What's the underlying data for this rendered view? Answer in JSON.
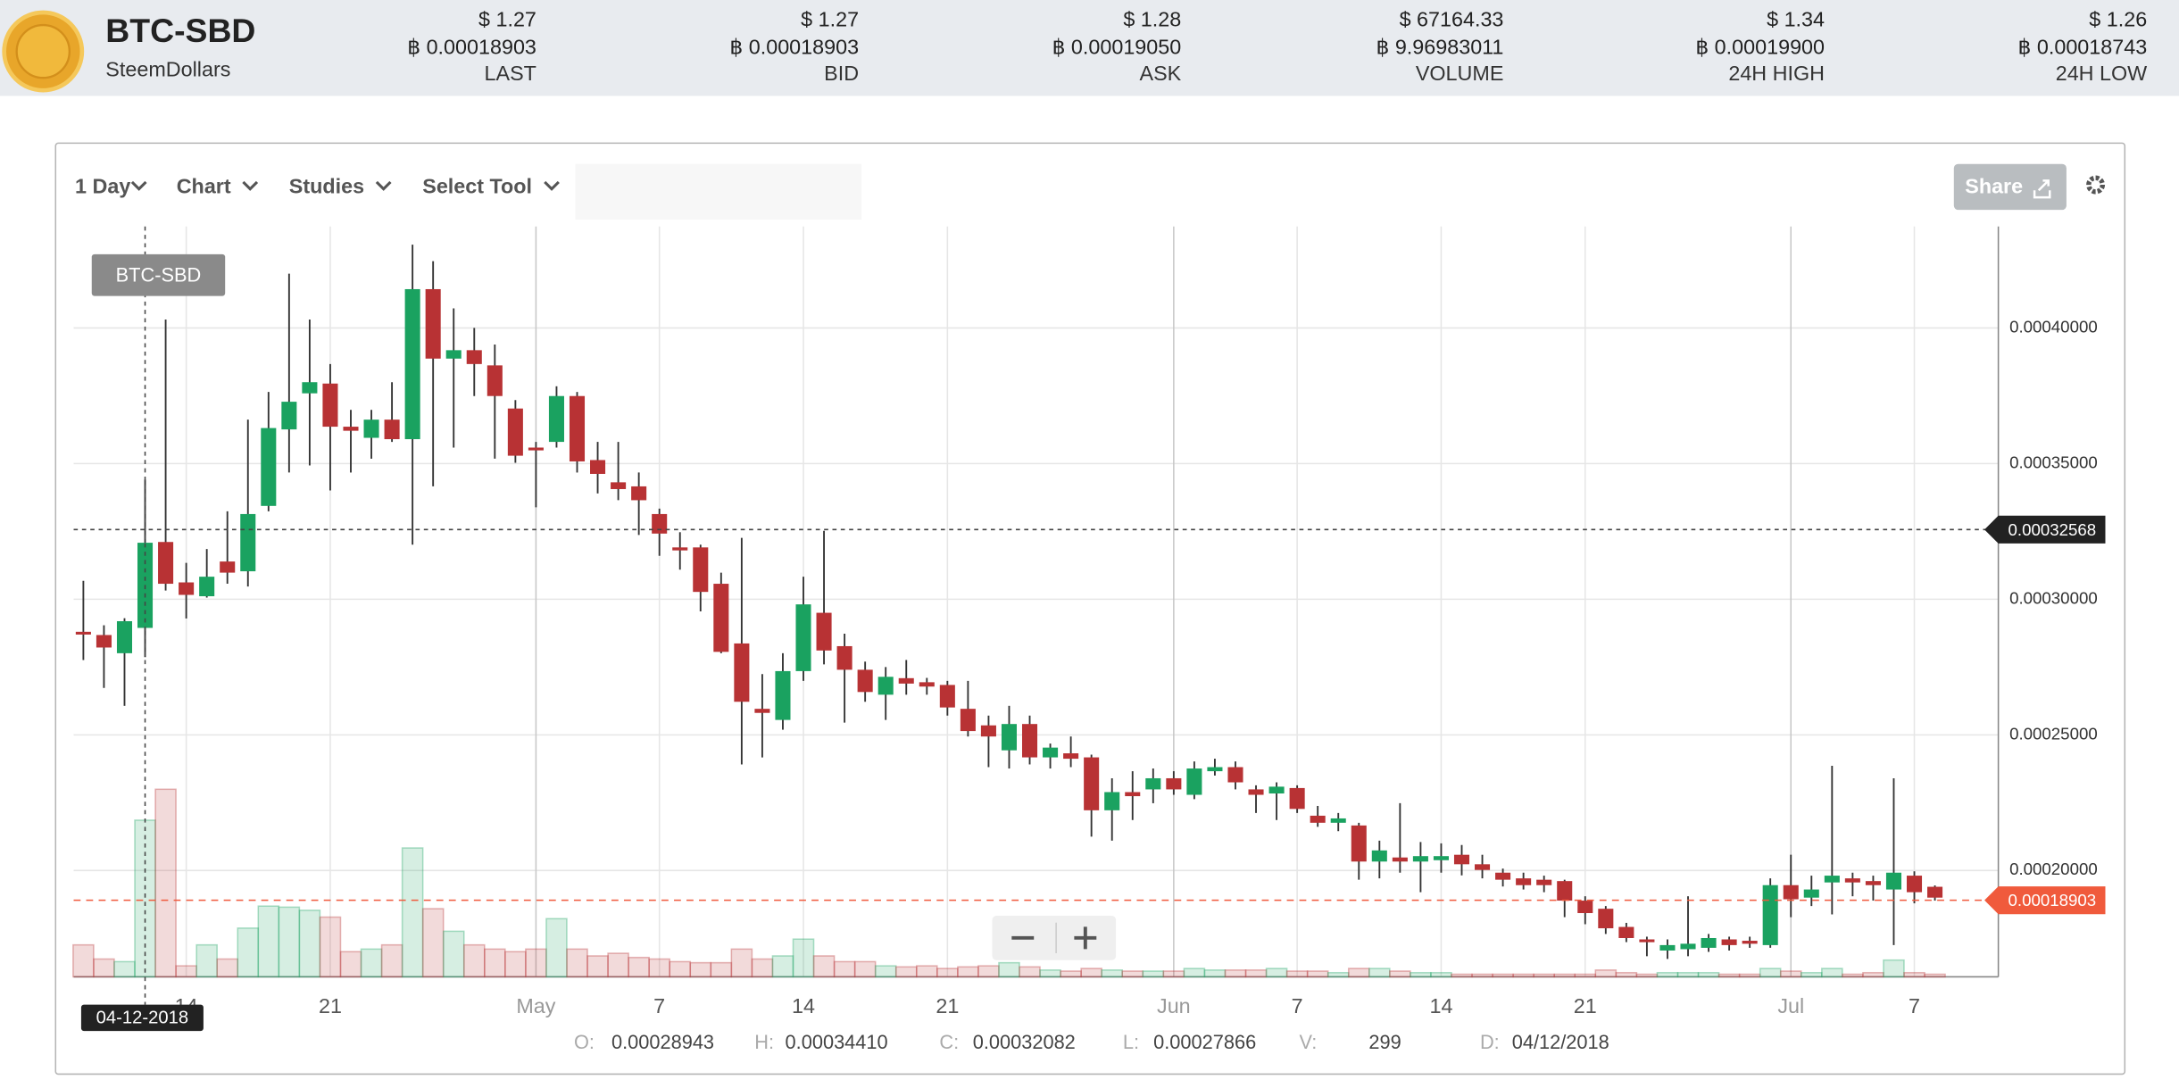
{
  "header": {
    "symbol": "BTC-SBD",
    "name": "SteemDollars",
    "stats": [
      {
        "usd": "$ 1.27",
        "btc": "฿ 0.00018903",
        "label": "LAST"
      },
      {
        "usd": "$ 1.27",
        "btc": "฿ 0.00018903",
        "label": "BID"
      },
      {
        "usd": "$ 1.28",
        "btc": "฿ 0.00019050",
        "label": "ASK"
      },
      {
        "usd": "$ 67164.33",
        "btc": "฿ 9.96983011",
        "label": "VOLUME"
      },
      {
        "usd": "$ 1.34",
        "btc": "฿ 0.00019900",
        "label": "24H HIGH"
      },
      {
        "usd": "$ 1.26",
        "btc": "฿ 0.00018743",
        "label": "24H LOW"
      }
    ]
  },
  "toolbar": {
    "items": [
      "1 Day",
      "Chart",
      "Studies",
      "Select Tool"
    ],
    "share": "Share"
  },
  "chart_data": {
    "type": "candlestick",
    "symbol_label": "BTC-SBD",
    "up_color": "#1aa260",
    "down_color": "#b83234",
    "last_price_color": "#f05a3c",
    "grid": true,
    "x": [
      "2018-04-09",
      "2018-04-10",
      "2018-04-11",
      "2018-04-12",
      "2018-04-13",
      "2018-04-14",
      "2018-04-15",
      "2018-04-16",
      "2018-04-17",
      "2018-04-18",
      "2018-04-19",
      "2018-04-20",
      "2018-04-21",
      "2018-04-22",
      "2018-04-23",
      "2018-04-24",
      "2018-04-25",
      "2018-04-26",
      "2018-04-27",
      "2018-04-28",
      "2018-04-29",
      "2018-04-30",
      "2018-05-01",
      "2018-05-02",
      "2018-05-03",
      "2018-05-04",
      "2018-05-05",
      "2018-05-06",
      "2018-05-07",
      "2018-05-08",
      "2018-05-09",
      "2018-05-10",
      "2018-05-11",
      "2018-05-12",
      "2018-05-13",
      "2018-05-14",
      "2018-05-15",
      "2018-05-16",
      "2018-05-17",
      "2018-05-18",
      "2018-05-19",
      "2018-05-20",
      "2018-05-21",
      "2018-05-22",
      "2018-05-23",
      "2018-05-24",
      "2018-05-25",
      "2018-05-26",
      "2018-05-27",
      "2018-05-28",
      "2018-05-29",
      "2018-05-30",
      "2018-05-31",
      "2018-06-01",
      "2018-06-02",
      "2018-06-03",
      "2018-06-04",
      "2018-06-05",
      "2018-06-06",
      "2018-06-07",
      "2018-06-08",
      "2018-06-09",
      "2018-06-10",
      "2018-06-11",
      "2018-06-12",
      "2018-06-13",
      "2018-06-14",
      "2018-06-15",
      "2018-06-16",
      "2018-06-17",
      "2018-06-18",
      "2018-06-19",
      "2018-06-20",
      "2018-06-21",
      "2018-06-22",
      "2018-06-23",
      "2018-06-24",
      "2018-06-25",
      "2018-06-26",
      "2018-06-27",
      "2018-06-28",
      "2018-06-29",
      "2018-06-30",
      "2018-07-01",
      "2018-07-02",
      "2018-07-03",
      "2018-07-04",
      "2018-07-05",
      "2018-07-06",
      "2018-07-07",
      "2018-07-08"
    ],
    "open": [
      0.000288,
      0.0002868,
      0.0002801,
      0.00028943,
      0.0003211,
      0.0003062,
      0.0003011,
      0.0003139,
      0.0003103,
      0.0003344,
      0.0003626,
      0.0003759,
      0.0003795,
      0.0003636,
      0.0003595,
      0.0003662,
      0.000359,
      0.0004143,
      0.0003887,
      0.0003918,
      0.0003862,
      0.0003703,
      0.0003559,
      0.000358,
      0.0003749,
      0.0003513,
      0.0003431,
      0.0003416,
      0.0003314,
      0.0003191,
      0.0003191,
      0.0003057,
      0.0002837,
      0.0002596,
      0.0002555,
      0.0002735,
      0.000295,
      0.0002827,
      0.000274,
      0.0002648,
      0.0002709,
      0.0002694,
      0.0002684,
      0.0002596,
      0.0002535,
      0.0002443,
      0.000254,
      0.0002417,
      0.0002432,
      0.0002417,
      0.0002222,
      0.0002289,
      0.0002299,
      0.000234,
      0.0002279,
      0.0002366,
      0.0002381,
      0.0002299,
      0.0002284,
      0.0002304,
      0.0002202,
      0.0002176,
      0.0002166,
      0.0002033,
      0.0002048,
      0.0002033,
      0.0002038,
      0.0002058,
      0.0002023,
      0.0001992,
      0.0001971,
      0.0001966,
      0.0001961,
      0.0001889,
      0.0001859,
      0.0001792,
      0.0001746,
      0.0001705,
      0.000171,
      0.0001715,
      0.0001746,
      0.0001741,
      0.0001725,
      0.0001946,
      0.00019,
      0.0001956,
      0.0001971,
      0.0001961,
      0.000193,
      0.0001981,
      0.000194
    ],
    "high": [
      0.0003068,
      0.0002904,
      0.000293,
      0.0003441,
      0.0004031,
      0.0003134,
      0.0003185,
      0.0003324,
      0.0003662,
      0.0003764,
      0.00042,
      0.0004031,
      0.0003867,
      0.0003698,
      0.0003698,
      0.00038,
      0.0004307,
      0.0004246,
      0.0004072,
      0.0004,
      0.0003939,
      0.0003734,
      0.000358,
      0.0003785,
      0.0003764,
      0.000358,
      0.000358,
      0.0003467,
      0.0003334,
      0.0003247,
      0.0003201,
      0.0003098,
      0.0003226,
      0.0002724,
      0.0002801,
      0.0003083,
      0.0003252,
      0.0002873,
      0.000277,
      0.000275,
      0.0002776,
      0.000271,
      0.0002699,
      0.0002699,
      0.0002571,
      0.0002607,
      0.0002571,
      0.0002468,
      0.0002494,
      0.0002427,
      0.000234,
      0.0002366,
      0.0002376,
      0.0002366,
      0.0002402,
      0.0002412,
      0.0002402,
      0.0002314,
      0.0002325,
      0.0002314,
      0.0002238,
      0.0002212,
      0.0002176,
      0.000211,
      0.0002248,
      0.0002105,
      0.00021,
      0.0002094,
      0.0002058,
      0.0002007,
      0.0001992,
      0.0001981,
      0.0001966,
      0.0001905,
      0.0001869,
      0.0001807,
      0.0001756,
      0.0001746,
      0.0001905,
      0.0001766,
      0.0001756,
      0.0001756,
      0.0001971,
      0.0002058,
      0.0001981,
      0.0002386,
      0.0001992,
      0.0001981,
      0.000234,
      0.0001997,
      0.0001945
    ],
    "low": [
      0.0002776,
      0.0002673,
      0.0002607,
      0.00027866,
      0.0003032,
      0.0002929,
      0.0003006,
      0.0003057,
      0.0003047,
      0.0003324,
      0.0003467,
      0.0003493,
      0.0003401,
      0.0003467,
      0.0003518,
      0.000358,
      0.0003201,
      0.0003416,
      0.0003559,
      0.0003749,
      0.0003518,
      0.0003503,
      0.0003339,
      0.0003559,
      0.0003467,
      0.000339,
      0.0003365,
      0.0003237,
      0.000316,
      0.0003109,
      0.0002955,
      0.0002801,
      0.0002391,
      0.0002417,
      0.0002519,
      0.0002699,
      0.000276,
      0.0002545,
      0.0002622,
      0.0002555,
      0.0002648,
      0.0002648,
      0.0002571,
      0.0002494,
      0.0002381,
      0.0002376,
      0.0002391,
      0.0002376,
      0.0002381,
      0.0002125,
      0.000211,
      0.0002186,
      0.0002248,
      0.0002279,
      0.0002263,
      0.000235,
      0.0002299,
      0.0002212,
      0.0002186,
      0.0002212,
      0.0002161,
      0.0002145,
      0.0001966,
      0.0001971,
      0.0001992,
      0.000192,
      0.0001992,
      0.0001982,
      0.0001971,
      0.0001941,
      0.000193,
      0.000192,
      0.0001828,
      0.0001802,
      0.0001766,
      0.0001736,
      0.0001684,
      0.0001674,
      0.0001684,
      0.00017,
      0.0001705,
      0.0001715,
      0.0001715,
      0.0001828,
      0.0001869,
      0.0001838,
      0.0001905,
      0.0001889,
      0.0001725,
      0.0001879,
      0.0001889
    ],
    "close": [
      0.000287,
      0.0002822,
      0.0002919,
      0.00032082,
      0.0003057,
      0.0003016,
      0.0003083,
      0.0003098,
      0.0003314,
      0.0003631,
      0.0003728,
      0.00038,
      0.0003636,
      0.0003621,
      0.0003662,
      0.000359,
      0.0004143,
      0.0003887,
      0.0003918,
      0.0003867,
      0.0003749,
      0.0003529,
      0.0003549,
      0.0003749,
      0.0003508,
      0.0003462,
      0.0003406,
      0.0003365,
      0.0003242,
      0.000318,
      0.0003027,
      0.0002806,
      0.0002622,
      0.0002581,
      0.0002735,
      0.0002981,
      0.0002811,
      0.000274,
      0.0002658,
      0.0002714,
      0.0002689,
      0.0002678,
      0.0002601,
      0.0002514,
      0.0002494,
      0.000254,
      0.0002417,
      0.0002453,
      0.0002412,
      0.0002222,
      0.0002289,
      0.0002274,
      0.000234,
      0.0002299,
      0.0002376,
      0.0002381,
      0.0002325,
      0.0002279,
      0.0002309,
      0.0002227,
      0.0002176,
      0.0002192,
      0.0002033,
      0.0002074,
      0.0002033,
      0.0002053,
      0.0002053,
      0.0002023,
      0.0002002,
      0.0001966,
      0.0001946,
      0.0001946,
      0.0001889,
      0.0001843,
      0.0001787,
      0.0001751,
      0.0001736,
      0.0001725,
      0.000173,
      0.0001751,
      0.0001725,
      0.000173,
      0.0001946,
      0.0001894,
      0.000193,
      0.0001981,
      0.0001956,
      0.0001946,
      0.0001992,
      0.000192,
      0.00019
    ],
    "volume": [
      61,
      34,
      29,
      299,
      358,
      21,
      61,
      34,
      93,
      135,
      133,
      127,
      114,
      48,
      53,
      61,
      246,
      130,
      87,
      61,
      53,
      48,
      53,
      111,
      53,
      40,
      45,
      37,
      34,
      29,
      27,
      27,
      53,
      34,
      40,
      72,
      40,
      29,
      29,
      21,
      19,
      21,
      16,
      19,
      21,
      27,
      19,
      13,
      11,
      16,
      13,
      11,
      11,
      11,
      16,
      13,
      13,
      13,
      16,
      11,
      11,
      8,
      16,
      16,
      11,
      8,
      8,
      5,
      5,
      5,
      5,
      5,
      5,
      5,
      13,
      8,
      5,
      8,
      8,
      8,
      5,
      5,
      16,
      11,
      8,
      16,
      5,
      8,
      32,
      8,
      5
    ],
    "xlim": [
      "2018-04-08T12:40:00Z",
      "2018-07-11T02:00:00Z"
    ],
    "xticks": [
      {
        "value": "2018-04-14",
        "label": "14"
      },
      {
        "value": "2018-04-21",
        "label": "21"
      },
      {
        "value": "2018-05-01",
        "label": "May"
      },
      {
        "value": "2018-05-07",
        "label": "7"
      },
      {
        "value": "2018-05-14",
        "label": "14"
      },
      {
        "value": "2018-05-21",
        "label": "21"
      },
      {
        "value": "2018-06-01",
        "label": "Jun"
      },
      {
        "value": "2018-06-07",
        "label": "7"
      },
      {
        "value": "2018-06-14",
        "label": "14"
      },
      {
        "value": "2018-06-21",
        "label": "21"
      },
      {
        "value": "2018-07-01",
        "label": "Jul"
      },
      {
        "value": "2018-07-07",
        "label": "7"
      }
    ],
    "ylim": [
      0.0001608,
      0.0004374
    ],
    "yticks": [
      {
        "value": 0.0002,
        "label": "0.00020000"
      },
      {
        "value": 0.00025,
        "label": "0.00025000"
      },
      {
        "value": 0.0003,
        "label": "0.00030000"
      },
      {
        "value": 0.00035,
        "label": "0.00035000"
      },
      {
        "value": 0.0004,
        "label": "0.00040000"
      }
    ],
    "last_price": 0.00018903,
    "crosshair": {
      "x": "2018-04-12",
      "label": "04-12-2018",
      "price": 0.00032568
    },
    "readout": [
      {
        "label": "O:",
        "value": "0.00028943"
      },
      {
        "label": "H:",
        "value": "0.00034410"
      },
      {
        "label": "C:",
        "value": "0.00032082"
      },
      {
        "label": "L:",
        "value": "0.00027866"
      },
      {
        "label": "V:",
        "value": "299"
      },
      {
        "label": "D:",
        "value": "04/12/2018"
      }
    ]
  }
}
